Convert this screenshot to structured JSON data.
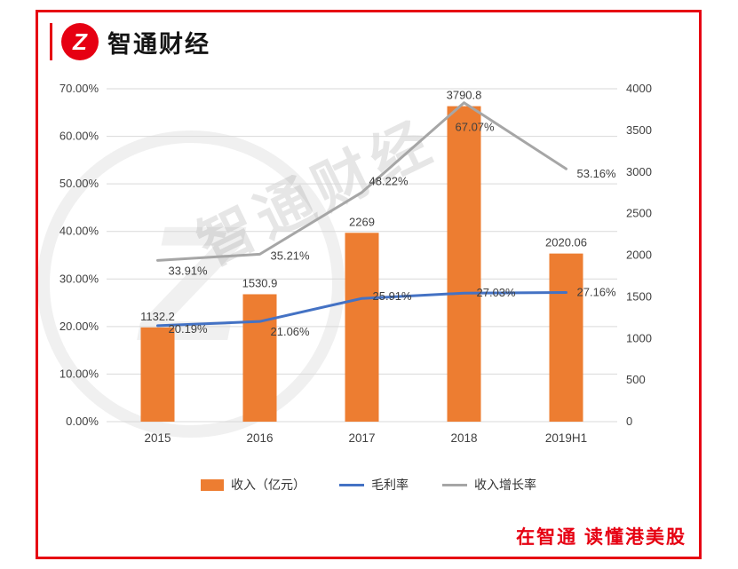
{
  "brand": {
    "name": "智通财经",
    "logo_glyph": "Z",
    "logo_icon": "zhitong-logo-icon",
    "tagline": "在智通  读懂港美股",
    "accent_color": "#e60012"
  },
  "watermark": "智通财经",
  "chart_data": {
    "type": "bar",
    "subtype": "combo-bar-line-dual-axis",
    "categories": [
      "2015",
      "2016",
      "2017",
      "2018",
      "2019H1"
    ],
    "series": [
      {
        "name": "收入（亿元）",
        "type": "bar",
        "axis": "right",
        "color": "#ED7D31",
        "values": [
          1132.2,
          1530.9,
          2269,
          3790.8,
          2020.06
        ],
        "labels": [
          "1132.2",
          "1530.9",
          "2269",
          "3790.8",
          "2020.06"
        ]
      },
      {
        "name": "毛利率",
        "type": "line",
        "axis": "left",
        "color": "#4472C4",
        "values": [
          20.19,
          21.06,
          25.91,
          27.03,
          27.16
        ],
        "labels": [
          "20.19%",
          "21.06%",
          "25.91%",
          "27.03%",
          "27.16%"
        ]
      },
      {
        "name": "收入增长率",
        "type": "line",
        "axis": "left",
        "color": "#A6A6A6",
        "values": [
          33.91,
          35.21,
          48.22,
          67.07,
          53.16
        ],
        "labels": [
          "33.91%",
          "35.21%",
          "48.22%",
          "67.07%",
          "53.16%"
        ]
      }
    ],
    "left_axis": {
      "min": 0,
      "max": 70,
      "step": 10,
      "format": "percent",
      "ticks": [
        "0.00%",
        "10.00%",
        "20.00%",
        "30.00%",
        "40.00%",
        "50.00%",
        "60.00%",
        "70.00%"
      ]
    },
    "right_axis": {
      "min": 0,
      "max": 4000,
      "step": 500,
      "ticks": [
        "0",
        "500",
        "1000",
        "1500",
        "2000",
        "2500",
        "3000",
        "3500",
        "4000"
      ]
    },
    "grid": true,
    "grid_color": "#d9d9d9",
    "label_color": "#404040",
    "legend_position": "bottom",
    "title": ""
  }
}
